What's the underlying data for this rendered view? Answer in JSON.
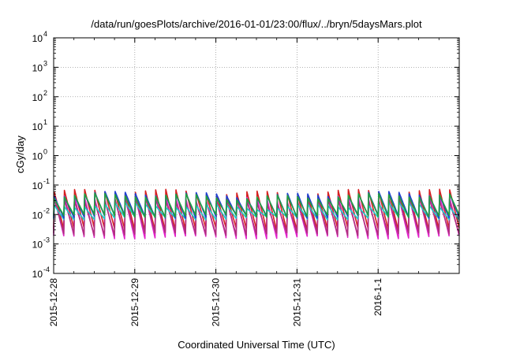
{
  "chart_data": {
    "type": "line",
    "title": "/data/run/goesPlots/archive/2016-01-01/23:00/flux/../bryn/5daysMars.plot",
    "xlabel": "Coordinated Universal Time (UTC)",
    "ylabel": "cGy/day",
    "y_scale": "log",
    "ylim": [
      0.0001,
      10000
    ],
    "xlim": [
      "2015-12-28",
      "2016-01-02"
    ],
    "y_ticks": [
      {
        "base": "10",
        "exp": "-4",
        "value": 0.0001
      },
      {
        "base": "10",
        "exp": "-3",
        "value": 0.001
      },
      {
        "base": "10",
        "exp": "-2",
        "value": 0.01
      },
      {
        "base": "10",
        "exp": "-1",
        "value": 0.1
      },
      {
        "base": "10",
        "exp": "0",
        "value": 1
      },
      {
        "base": "10",
        "exp": "1",
        "value": 10
      },
      {
        "base": "10",
        "exp": "2",
        "value": 100
      },
      {
        "base": "10",
        "exp": "3",
        "value": 1000
      },
      {
        "base": "10",
        "exp": "4",
        "value": 10000
      }
    ],
    "x_ticks": [
      "2015-12-28",
      "2015-12-29",
      "2015-12-30",
      "2015-12-31",
      "2016-1-1"
    ],
    "grid": true,
    "sawtooth_cycles_per_day": 8,
    "series": [
      {
        "color": "#d62020",
        "peak": 0.058,
        "trough": 0.0032
      },
      {
        "color": "#e020c8",
        "peak": 0.035,
        "trough": 0.0017
      },
      {
        "color": "#b03080",
        "peak": 0.03,
        "trough": 0.0022
      },
      {
        "color": "#20c8c8",
        "peak": 0.02,
        "trough": 0.0075
      },
      {
        "color": "#2040d0",
        "peak": 0.048,
        "trough": 0.0085
      },
      {
        "color": "#20a040",
        "peak": 0.042,
        "trough": 0.009
      }
    ]
  }
}
